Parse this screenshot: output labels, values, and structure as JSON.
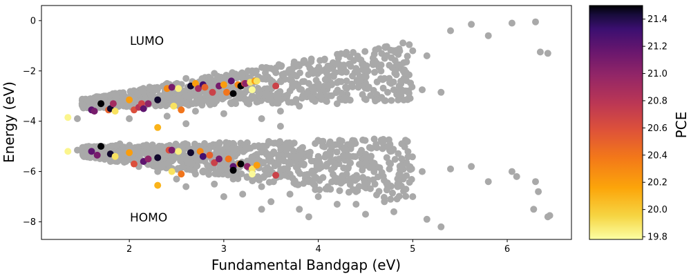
{
  "chart_data": {
    "type": "scatter",
    "xlabel": "Fundamental Bandgap (eV)",
    "ylabel": "Energy (eV)",
    "xlim": [
      1.07,
      6.68
    ],
    "ylim": [
      -8.7,
      0.6
    ],
    "xticks": [
      "2",
      "3",
      "4",
      "5",
      "6"
    ],
    "yticks": [
      "0",
      "−2",
      "−4",
      "−6",
      "−8"
    ],
    "annotations": [
      "LUMO",
      "HOMO"
    ],
    "grid": false,
    "colorbar": {
      "label": "PCE",
      "range": [
        19.78,
        21.5
      ],
      "ticks": [
        "19.8",
        "20.0",
        "20.2",
        "20.4",
        "20.6",
        "20.8",
        "21.0",
        "21.2",
        "21.4"
      ],
      "colormap": "inferno_r"
    },
    "background_color": "#a9a9a9",
    "background_points_lumo": [
      [
        1.45,
        -3.9
      ],
      [
        1.6,
        -3.4
      ],
      [
        1.65,
        -3.1
      ],
      [
        1.75,
        -3.0
      ],
      [
        1.85,
        -3.2
      ],
      [
        1.95,
        -3.3
      ],
      [
        2.1,
        -2.9
      ],
      [
        2.2,
        -3.0
      ],
      [
        2.3,
        -2.7
      ],
      [
        2.4,
        -2.5
      ],
      [
        2.5,
        -2.9
      ],
      [
        2.6,
        -2.3
      ],
      [
        2.7,
        -2.8
      ],
      [
        2.8,
        -2.4
      ],
      [
        2.9,
        -2.1
      ],
      [
        3.0,
        -2.9
      ],
      [
        3.1,
        -2.2
      ],
      [
        3.2,
        -2.6
      ],
      [
        3.3,
        -2.0
      ],
      [
        3.4,
        -2.3
      ],
      [
        3.5,
        -1.9
      ],
      [
        3.6,
        -2.4
      ],
      [
        3.7,
        -2.1
      ],
      [
        3.8,
        -1.8
      ],
      [
        3.9,
        -2.5
      ],
      [
        4.0,
        -2.0
      ],
      [
        4.1,
        -2.2
      ],
      [
        4.2,
        -1.7
      ],
      [
        4.3,
        -2.4
      ],
      [
        4.4,
        -1.9
      ],
      [
        4.5,
        -2.1
      ],
      [
        4.6,
        -1.6
      ],
      [
        4.7,
        -2.3
      ],
      [
        4.8,
        -1.9
      ],
      [
        4.9,
        -2.0
      ],
      [
        5.0,
        -1.2
      ],
      [
        5.15,
        -1.4
      ],
      [
        5.4,
        -0.4
      ],
      [
        5.62,
        -0.15
      ],
      [
        5.8,
        -0.6
      ],
      [
        6.05,
        -0.1
      ],
      [
        6.3,
        -0.05
      ],
      [
        6.35,
        -1.25
      ],
      [
        6.43,
        -1.3
      ],
      [
        5.1,
        -2.75
      ],
      [
        5.3,
        -2.85
      ],
      [
        4.95,
        -2.8
      ],
      [
        4.6,
        -3.1
      ],
      [
        4.2,
        -3.3
      ],
      [
        3.8,
        -3.4
      ],
      [
        3.6,
        -3.6
      ],
      [
        3.4,
        -3.9
      ],
      [
        3.0,
        -3.7
      ],
      [
        2.7,
        -3.6
      ],
      [
        2.4,
        -3.8
      ],
      [
        2.0,
        -3.9
      ],
      [
        2.5,
        -3.2
      ],
      [
        2.9,
        -3.3
      ],
      [
        3.3,
        -3.0
      ],
      [
        3.7,
        -2.8
      ],
      [
        4.3,
        -2.7
      ],
      [
        3.6,
        -4.2
      ],
      [
        2.6,
        -4.1
      ]
    ],
    "background_points_homo": [
      [
        1.45,
        -5.15
      ],
      [
        1.6,
        -5.4
      ],
      [
        1.7,
        -5.0
      ],
      [
        1.8,
        -5.6
      ],
      [
        1.9,
        -4.9
      ],
      [
        2.0,
        -5.5
      ],
      [
        2.1,
        -5.8
      ],
      [
        2.2,
        -5.2
      ],
      [
        2.3,
        -6.0
      ],
      [
        2.4,
        -5.5
      ],
      [
        2.5,
        -6.3
      ],
      [
        2.6,
        -5.4
      ],
      [
        2.7,
        -6.1
      ],
      [
        2.8,
        -5.6
      ],
      [
        2.9,
        -6.5
      ],
      [
        3.0,
        -5.7
      ],
      [
        3.1,
        -6.3
      ],
      [
        3.2,
        -6.9
      ],
      [
        3.3,
        -6.0
      ],
      [
        3.4,
        -6.6
      ],
      [
        3.5,
        -7.2
      ],
      [
        3.6,
        -6.2
      ],
      [
        3.7,
        -6.9
      ],
      [
        3.8,
        -7.5
      ],
      [
        3.9,
        -6.4
      ],
      [
        4.0,
        -7.0
      ],
      [
        4.1,
        -6.6
      ],
      [
        4.2,
        -7.3
      ],
      [
        4.3,
        -6.1
      ],
      [
        4.4,
        -6.8
      ],
      [
        4.5,
        -7.7
      ],
      [
        4.6,
        -6.5
      ],
      [
        4.7,
        -7.2
      ],
      [
        4.8,
        -7.6
      ],
      [
        4.9,
        -6.3
      ],
      [
        5.0,
        -7.0
      ],
      [
        5.15,
        -7.9
      ],
      [
        5.3,
        -8.2
      ],
      [
        5.4,
        -5.9
      ],
      [
        5.62,
        -5.8
      ],
      [
        5.8,
        -6.4
      ],
      [
        6.05,
        -6.0
      ],
      [
        6.1,
        -6.2
      ],
      [
        6.28,
        -7.5
      ],
      [
        6.3,
        -6.4
      ],
      [
        6.33,
        -6.8
      ],
      [
        6.43,
        -7.8
      ],
      [
        6.45,
        -7.75
      ],
      [
        4.0,
        -5.4
      ],
      [
        3.6,
        -5.0
      ],
      [
        3.2,
        -5.0
      ],
      [
        2.8,
        -5.0
      ],
      [
        2.4,
        -5.0
      ],
      [
        2.0,
        -5.0
      ],
      [
        2.6,
        -6.6
      ],
      [
        3.0,
        -7.0
      ],
      [
        3.4,
        -7.5
      ],
      [
        3.9,
        -7.8
      ],
      [
        4.4,
        -7.3
      ],
      [
        5.1,
        -6.0
      ],
      [
        4.6,
        -5.8
      ]
    ],
    "colored_points": [
      [
        1.35,
        -3.85,
        19.82
      ],
      [
        1.35,
        -5.2,
        19.82
      ],
      [
        1.6,
        -3.55,
        21.2
      ],
      [
        1.6,
        -5.2,
        21.2
      ],
      [
        1.63,
        -3.6,
        21.1
      ],
      [
        1.66,
        -5.35,
        21.1
      ],
      [
        1.7,
        -3.3,
        21.5
      ],
      [
        1.7,
        -5.0,
        21.5
      ],
      [
        1.78,
        -3.55,
        20.5
      ],
      [
        1.8,
        -3.5,
        21.45
      ],
      [
        1.8,
        -5.3,
        21.45
      ],
      [
        1.83,
        -3.3,
        20.9
      ],
      [
        1.85,
        -3.6,
        19.9
      ],
      [
        1.85,
        -5.4,
        19.9
      ],
      [
        2.0,
        -3.15,
        20.2
      ],
      [
        2.0,
        -5.25,
        20.2
      ],
      [
        2.05,
        -3.55,
        20.6
      ],
      [
        2.05,
        -5.7,
        20.6
      ],
      [
        2.1,
        -3.45,
        20.8
      ],
      [
        2.13,
        -3.3,
        20.7
      ],
      [
        2.15,
        -3.5,
        21.2
      ],
      [
        2.15,
        -5.6,
        21.2
      ],
      [
        2.2,
        -3.3,
        21.0
      ],
      [
        2.2,
        -5.5,
        21.0
      ],
      [
        2.3,
        -3.15,
        21.45
      ],
      [
        2.3,
        -5.45,
        21.45
      ],
      [
        2.3,
        -4.25,
        20.1
      ],
      [
        2.3,
        -6.55,
        20.1
      ],
      [
        2.4,
        -2.7,
        20.3
      ],
      [
        2.42,
        -5.15,
        20.6
      ],
      [
        2.45,
        -2.65,
        21.1
      ],
      [
        2.45,
        -5.15,
        21.1
      ],
      [
        2.47,
        -3.4,
        19.9
      ],
      [
        2.45,
        -6.0,
        19.9
      ],
      [
        2.52,
        -2.7,
        19.85
      ],
      [
        2.52,
        -5.2,
        19.85
      ],
      [
        2.55,
        -3.55,
        20.4
      ],
      [
        2.55,
        -6.1,
        20.4
      ],
      [
        2.65,
        -2.6,
        21.45
      ],
      [
        2.65,
        -5.25,
        21.45
      ],
      [
        2.7,
        -2.5,
        20.2
      ],
      [
        2.73,
        -2.7,
        20.9
      ],
      [
        2.75,
        -5.2,
        20.3
      ],
      [
        2.78,
        -2.55,
        21.3
      ],
      [
        2.78,
        -5.4,
        21.3
      ],
      [
        2.8,
        -2.65,
        20.5
      ],
      [
        2.85,
        -5.35,
        20.5
      ],
      [
        2.88,
        -2.85,
        20.7
      ],
      [
        2.9,
        -5.65,
        20.7
      ],
      [
        2.95,
        -2.6,
        21.1
      ],
      [
        2.95,
        -5.5,
        21.1
      ],
      [
        3.0,
        -2.55,
        20.2
      ],
      [
        3.03,
        -2.85,
        20.4
      ],
      [
        3.05,
        -5.5,
        20.4
      ],
      [
        3.08,
        -2.4,
        21.2
      ],
      [
        3.1,
        -5.8,
        21.2
      ],
      [
        3.1,
        -2.9,
        21.5
      ],
      [
        3.1,
        -5.95,
        21.5
      ],
      [
        3.15,
        -2.55,
        20.3
      ],
      [
        3.17,
        -5.7,
        20.3
      ],
      [
        3.18,
        -2.6,
        21.5
      ],
      [
        3.18,
        -5.7,
        21.5
      ],
      [
        3.22,
        -2.5,
        20.6
      ],
      [
        3.23,
        -2.5,
        21.0
      ],
      [
        3.25,
        -5.8,
        21.0
      ],
      [
        3.28,
        -2.45,
        19.9
      ],
      [
        3.3,
        -5.9,
        19.9
      ],
      [
        3.3,
        -2.75,
        19.8
      ],
      [
        3.3,
        -6.1,
        19.8
      ],
      [
        3.33,
        -2.4,
        20.2
      ],
      [
        3.35,
        -5.75,
        20.2
      ],
      [
        3.35,
        -2.4,
        19.9
      ],
      [
        3.55,
        -2.6,
        20.7
      ],
      [
        3.55,
        -6.15,
        20.7
      ]
    ]
  }
}
